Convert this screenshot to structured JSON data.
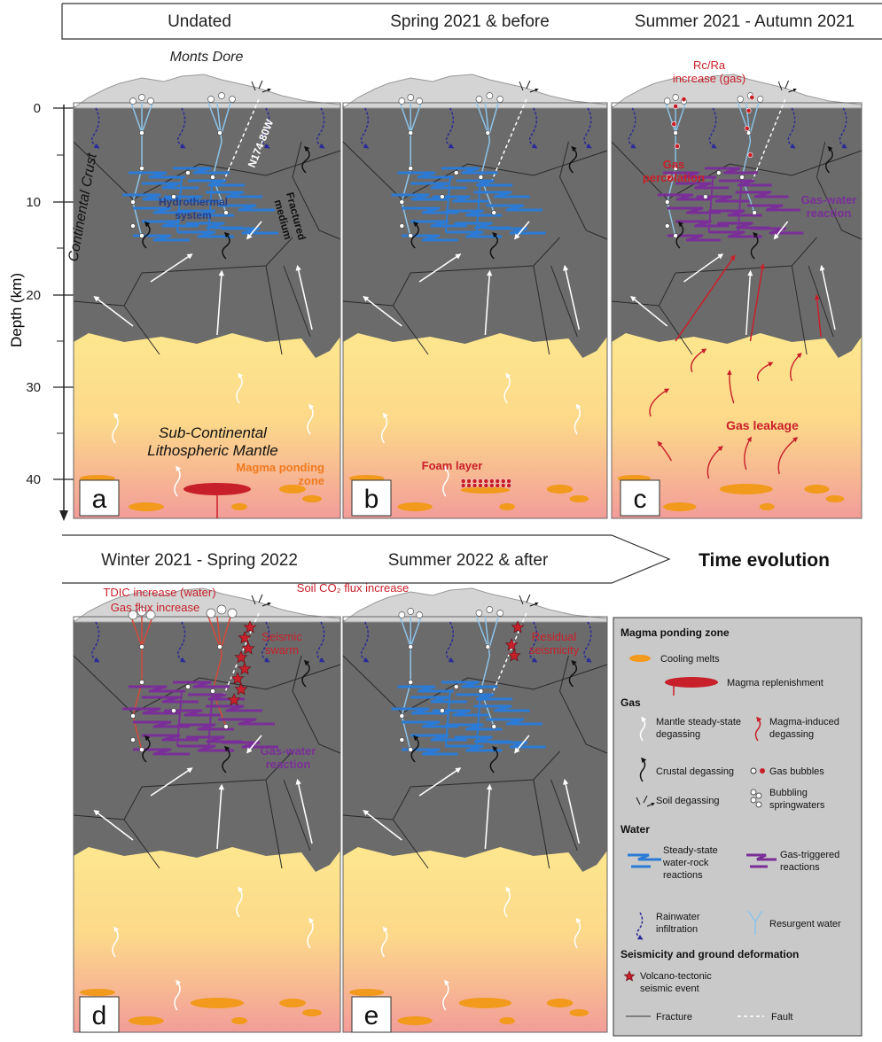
{
  "header": {
    "periods": [
      "Undated",
      "Spring 2021 & before",
      "Summer 2021 - Autumn 2021",
      "Winter 2021 - Spring 2022",
      "Summer 2022 & after"
    ],
    "time_label": "Time evolution",
    "location": "Monts Dore",
    "fault": "N174-80W"
  },
  "depth_axis": {
    "title": "Depth (km)",
    "ticks": [
      0,
      10,
      20,
      30,
      40
    ]
  },
  "panels": [
    {
      "letter": "a",
      "labels": [
        {
          "lines": [
            "Continental Crust"
          ]
        },
        {
          "lines": [
            "Hydrothermal",
            "system"
          ]
        },
        {
          "lines": [
            "Fractured",
            "medium"
          ]
        },
        {
          "lines": [
            "Sub-Continental",
            "Lithospheric Mantle"
          ]
        },
        {
          "lines": [
            "Magma ponding",
            "zone"
          ]
        }
      ]
    },
    {
      "letter": "b",
      "labels": [
        {
          "lines": [
            "Foam layer"
          ]
        }
      ]
    },
    {
      "letter": "c",
      "labels": [
        {
          "lines": [
            "Rc/Ra",
            "increase (gas)"
          ]
        },
        {
          "lines": [
            "Gas",
            "percolation"
          ]
        },
        {
          "lines": [
            "Gas-water",
            "reaction"
          ]
        },
        {
          "lines": [
            "Gas leakage"
          ]
        }
      ]
    },
    {
      "letter": "d",
      "labels": [
        {
          "lines": [
            "TDIC increase (water)"
          ]
        },
        {
          "lines": [
            "Gas flux increase"
          ]
        },
        {
          "lines": [
            "Soil CO₂ flux increase"
          ]
        },
        {
          "lines": [
            "Seismic",
            "swarm"
          ]
        },
        {
          "lines": [
            "Gas-water",
            "reaction"
          ]
        }
      ]
    },
    {
      "letter": "e",
      "labels": [
        {
          "lines": [
            "Residual",
            "seismicity"
          ]
        }
      ]
    }
  ],
  "legend": {
    "sections": [
      {
        "heading": "Magma ponding zone",
        "items": [
          {
            "lines": [
              "Cooling melts"
            ]
          },
          {
            "lines": [
              "Magma replenishment"
            ]
          }
        ]
      },
      {
        "heading": "Gas",
        "items": [
          {
            "lines": [
              "Mantle steady-state",
              "degassing"
            ]
          },
          {
            "lines": [
              "Magma-induced",
              "degassing"
            ]
          },
          {
            "lines": [
              "Crustal degassing"
            ]
          },
          {
            "lines": [
              "Gas bubbles"
            ]
          },
          {
            "lines": [
              "Soil degassing"
            ]
          },
          {
            "lines": [
              "Bubbling",
              "springwaters"
            ]
          }
        ]
      },
      {
        "heading": "Water",
        "items": [
          {
            "lines": [
              "Steady-state",
              "water-rock",
              "reactions"
            ]
          },
          {
            "lines": [
              "Gas-triggered",
              "reactions"
            ]
          },
          {
            "lines": [
              "Rainwater",
              "infiltration"
            ]
          },
          {
            "lines": [
              "Resurgent water"
            ]
          }
        ]
      },
      {
        "heading": "Seismicity and ground deformation",
        "items": [
          {
            "lines": [
              "Volcano-tectonic",
              "seismic event"
            ]
          },
          {
            "lines": [
              "Fracture"
            ]
          },
          {
            "lines": [
              "Fault"
            ]
          }
        ]
      }
    ]
  }
}
